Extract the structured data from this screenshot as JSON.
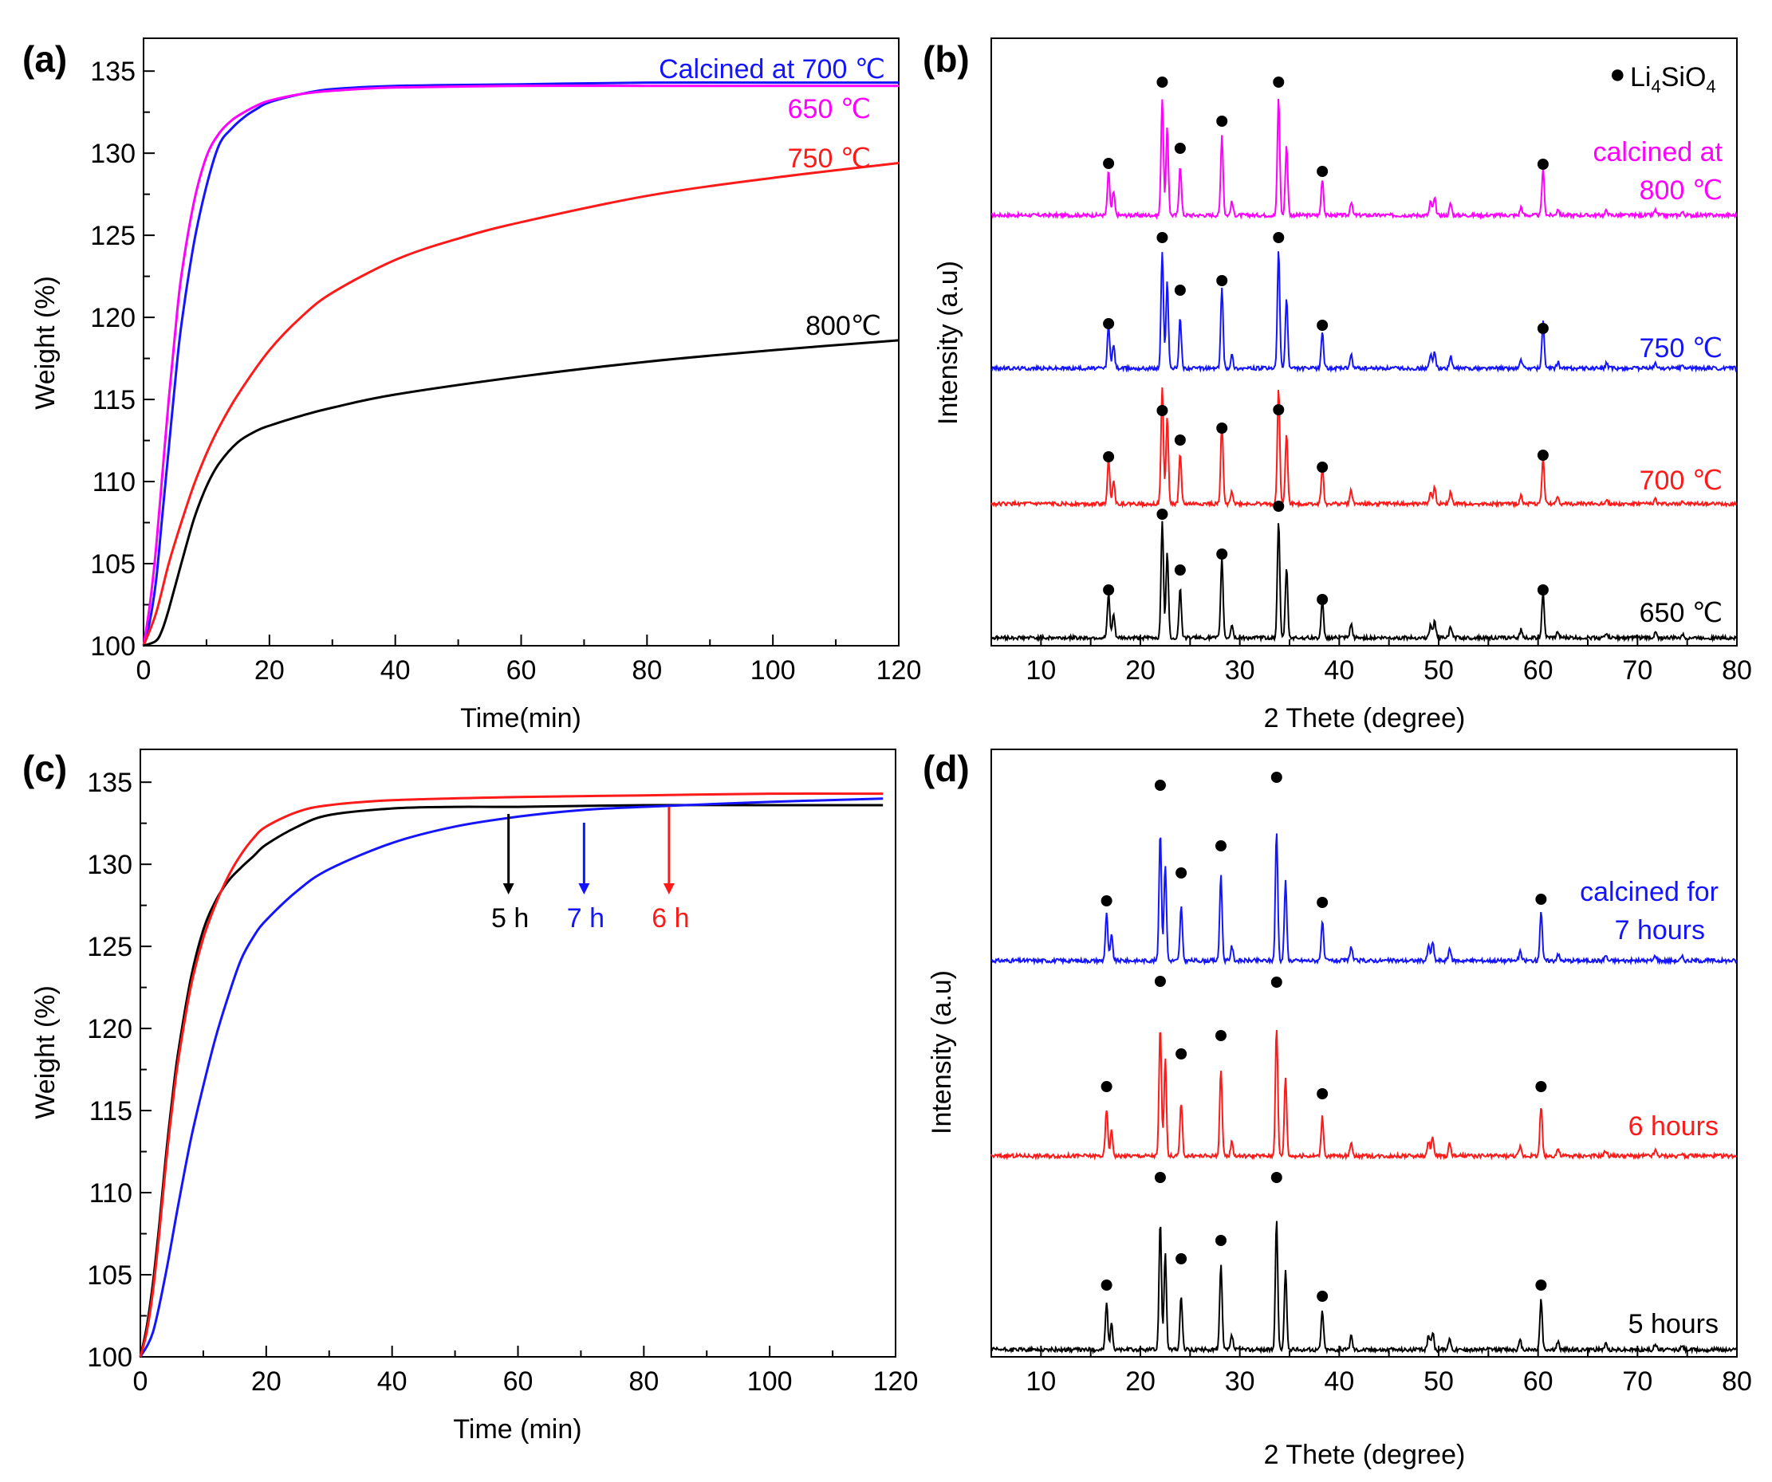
{
  "chart_data": [
    {
      "panel": "(a)",
      "type": "line",
      "xlabel": "Time(min)",
      "ylabel": "Weight (%)",
      "xlim": [
        0,
        120
      ],
      "ylim": [
        100,
        137
      ],
      "xticks": [
        0,
        20,
        40,
        60,
        80,
        100,
        120
      ],
      "yticks": [
        100,
        105,
        110,
        115,
        120,
        125,
        130,
        135
      ],
      "series": [
        {
          "name": "Calcined at 700 ℃",
          "color": "#1414ff",
          "x": [
            0,
            1,
            2,
            3,
            4,
            5,
            6,
            8,
            10,
            12,
            14,
            16,
            18,
            20,
            25,
            30,
            40,
            60,
            80,
            100,
            120
          ],
          "y": [
            100,
            101.5,
            104,
            108,
            112,
            116,
            119.5,
            124.5,
            128,
            130.5,
            131.5,
            132.2,
            132.7,
            133.1,
            133.6,
            133.9,
            134.1,
            134.2,
            134.3,
            134.3,
            134.3
          ]
        },
        {
          "name": "650 ℃",
          "color": "#ff00ff",
          "x": [
            0,
            1,
            2,
            3,
            4,
            5,
            6,
            8,
            10,
            12,
            14,
            16,
            18,
            20,
            25,
            30,
            40,
            60,
            80,
            100,
            120
          ],
          "y": [
            100,
            102.5,
            106,
            110.5,
            115,
            119,
            122.5,
            127,
            129.8,
            131.2,
            132,
            132.5,
            132.9,
            133.2,
            133.6,
            133.8,
            134,
            134.1,
            134.1,
            134.1,
            134.1
          ]
        },
        {
          "name": "750 ℃",
          "color": "#ff1a1a",
          "x": [
            0,
            2,
            4,
            6,
            8,
            10,
            12,
            15,
            20,
            25,
            30,
            40,
            50,
            60,
            80,
            100,
            120
          ],
          "y": [
            100,
            102,
            105,
            107.5,
            109.8,
            111.7,
            113.3,
            115.3,
            118,
            120,
            121.5,
            123.5,
            124.8,
            125.8,
            127.4,
            128.5,
            129.4
          ]
        },
        {
          "name": "800℃",
          "color": "#000000",
          "x": [
            0,
            2,
            3,
            4,
            6,
            8,
            10,
            12,
            15,
            18,
            20,
            25,
            30,
            40,
            60,
            80,
            100,
            120
          ],
          "y": [
            100,
            100.3,
            101,
            102.2,
            105,
            107.7,
            109.7,
            111.1,
            112.4,
            113.1,
            113.4,
            114,
            114.5,
            115.3,
            116.4,
            117.3,
            118,
            118.6
          ]
        }
      ],
      "labels": [
        {
          "text": "Calcined at 700 ℃",
          "color": "#1414ff"
        },
        {
          "text": "650 ℃",
          "color": "#ff00ff"
        },
        {
          "text": "750 ℃",
          "color": "#ff1a1a"
        },
        {
          "text": "800℃",
          "color": "#000000"
        }
      ]
    },
    {
      "panel": "(b)",
      "type": "line",
      "xlabel": "2 Thete (degree)",
      "ylabel": "Intensity (a.u)",
      "xlim": [
        5,
        80
      ],
      "xticks": [
        10,
        20,
        30,
        40,
        50,
        60,
        70,
        80
      ],
      "legend": {
        "marker": "●",
        "text": "Li",
        "sub4": "4",
        "text2": "SiO",
        "sub5": "4",
        "position": "top-right"
      },
      "marker_positions": [
        16.8,
        22.2,
        24.0,
        28.2,
        33.9,
        38.3,
        60.5
      ],
      "series": [
        {
          "name": "800 ℃",
          "color": "#ff00ff",
          "offset": 3
        },
        {
          "name": "750 ℃",
          "color": "#1414ff",
          "offset": 2
        },
        {
          "name": "700 ℃",
          "color": "#ff1a1a",
          "offset": 1
        },
        {
          "name": "650 ℃",
          "color": "#000000",
          "offset": 0
        }
      ],
      "labels": [
        {
          "text": "calcined at",
          "color": "#ff00ff"
        },
        {
          "text": "800 ℃",
          "color": "#ff00ff"
        },
        {
          "text": "750 ℃",
          "color": "#1414ff"
        },
        {
          "text": "700 ℃",
          "color": "#ff1a1a"
        },
        {
          "text": "650 ℃",
          "color": "#000000"
        }
      ]
    },
    {
      "panel": "(c)",
      "type": "line",
      "xlabel": "Time (min)",
      "ylabel": "Weight (%)",
      "xlim": [
        0,
        120
      ],
      "ylim": [
        100,
        137
      ],
      "xticks": [
        0,
        20,
        40,
        60,
        80,
        100,
        120
      ],
      "yticks": [
        100,
        105,
        110,
        115,
        120,
        125,
        130,
        135
      ],
      "series": [
        {
          "name": "5 h",
          "color": "#000000",
          "x": [
            0,
            1,
            2,
            3,
            4,
            5,
            6,
            8,
            10,
            12,
            14,
            16,
            18,
            20,
            25,
            30,
            40,
            50,
            60,
            80,
            100,
            118
          ],
          "y": [
            100,
            101.8,
            104.5,
            108,
            112,
            115.5,
            118.5,
            123,
            126,
            127.8,
            129,
            129.8,
            130.5,
            131.2,
            132.3,
            133,
            133.4,
            133.5,
            133.5,
            133.6,
            133.6,
            133.6
          ]
        },
        {
          "name": "7 h",
          "color": "#1414ff",
          "x": [
            0,
            2,
            4,
            6,
            8,
            10,
            12,
            14,
            16,
            18,
            20,
            25,
            30,
            40,
            50,
            60,
            70,
            80,
            100,
            118
          ],
          "y": [
            100,
            101.5,
            105,
            109.2,
            113.2,
            116.5,
            119.5,
            122,
            124.2,
            125.6,
            126.6,
            128.4,
            129.7,
            131.3,
            132.3,
            132.9,
            133.3,
            133.5,
            133.8,
            134
          ]
        },
        {
          "name": "6 h",
          "color": "#ff1a1a",
          "x": [
            0,
            1,
            2,
            3,
            4,
            5,
            6,
            8,
            10,
            12,
            14,
            16,
            18,
            20,
            25,
            30,
            40,
            60,
            80,
            100,
            118
          ],
          "y": [
            100,
            101.5,
            104,
            107.5,
            111.5,
            115,
            118,
            122.5,
            125.5,
            127.6,
            129.3,
            130.6,
            131.6,
            132.3,
            133.2,
            133.6,
            133.9,
            134.1,
            134.2,
            134.3,
            134.3
          ]
        }
      ],
      "arrows": [
        {
          "text": "5 h",
          "x": 58.5,
          "color": "#000000"
        },
        {
          "text": "7 h",
          "x": 70.5,
          "color": "#1414ff"
        },
        {
          "text": "6 h",
          "x": 84,
          "color": "#ff1a1a"
        }
      ]
    },
    {
      "panel": "(d)",
      "type": "line",
      "xlabel": "2 Thete (degree)",
      "ylabel": "Intensity (a.u)",
      "xlim": [
        5,
        80
      ],
      "xticks": [
        10,
        20,
        30,
        40,
        50,
        60,
        70,
        80
      ],
      "marker_positions": [
        16.6,
        22.0,
        24.1,
        28.1,
        33.7,
        38.3,
        60.3
      ],
      "series": [
        {
          "name": "7 hours",
          "color": "#1414ff",
          "offset": 2
        },
        {
          "name": "6 hours",
          "color": "#ff1a1a",
          "offset": 1
        },
        {
          "name": "5 hours",
          "color": "#000000",
          "offset": 0
        }
      ],
      "labels": [
        {
          "text": "calcined for",
          "color": "#1414ff"
        },
        {
          "text": "7 hours",
          "color": "#1414ff"
        },
        {
          "text": "6 hours",
          "color": "#ff1a1a"
        },
        {
          "text": "5 hours",
          "color": "#000000"
        }
      ]
    }
  ]
}
